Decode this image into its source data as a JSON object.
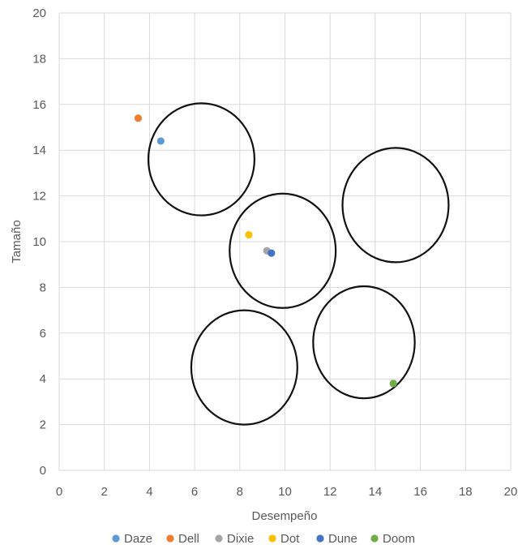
{
  "chart_data": {
    "type": "scatter",
    "xlabel": "Desempeño",
    "ylabel": "Tamaño",
    "xlim": [
      0,
      20
    ],
    "ylim": [
      0,
      20
    ],
    "x_ticks": [
      "0",
      "2",
      "4",
      "6",
      "8",
      "10",
      "12",
      "14",
      "16",
      "18",
      "20"
    ],
    "y_ticks": [
      "0",
      "2",
      "4",
      "6",
      "8",
      "10",
      "12",
      "14",
      "16",
      "18",
      "20"
    ],
    "grid": true,
    "legend_position": "bottom",
    "series": [
      {
        "name": "Daze",
        "color": "#5b9bd5",
        "points": [
          {
            "x": 4.5,
            "y": 14.4
          }
        ]
      },
      {
        "name": "Dell",
        "color": "#ed7d31",
        "points": [
          {
            "x": 3.5,
            "y": 15.4
          }
        ]
      },
      {
        "name": "Dixie",
        "color": "#a5a5a5",
        "points": [
          {
            "x": 9.2,
            "y": 9.6
          }
        ]
      },
      {
        "name": "Dot",
        "color": "#ffc000",
        "points": [
          {
            "x": 8.4,
            "y": 10.3
          }
        ]
      },
      {
        "name": "Dune",
        "color": "#4472c4",
        "points": [
          {
            "x": 9.4,
            "y": 9.5
          }
        ]
      },
      {
        "name": "Doom",
        "color": "#70ad47",
        "points": [
          {
            "x": 14.8,
            "y": 3.8
          }
        ]
      }
    ],
    "circles": [
      {
        "cx": 6.3,
        "cy": 13.6,
        "rx": 2.35,
        "ry": 2.45
      },
      {
        "cx": 9.9,
        "cy": 9.6,
        "rx": 2.35,
        "ry": 2.5
      },
      {
        "cx": 14.9,
        "cy": 11.6,
        "rx": 2.35,
        "ry": 2.5
      },
      {
        "cx": 13.5,
        "cy": 5.6,
        "rx": 2.25,
        "ry": 2.45
      },
      {
        "cx": 8.2,
        "cy": 4.5,
        "rx": 2.35,
        "ry": 2.5
      }
    ]
  }
}
